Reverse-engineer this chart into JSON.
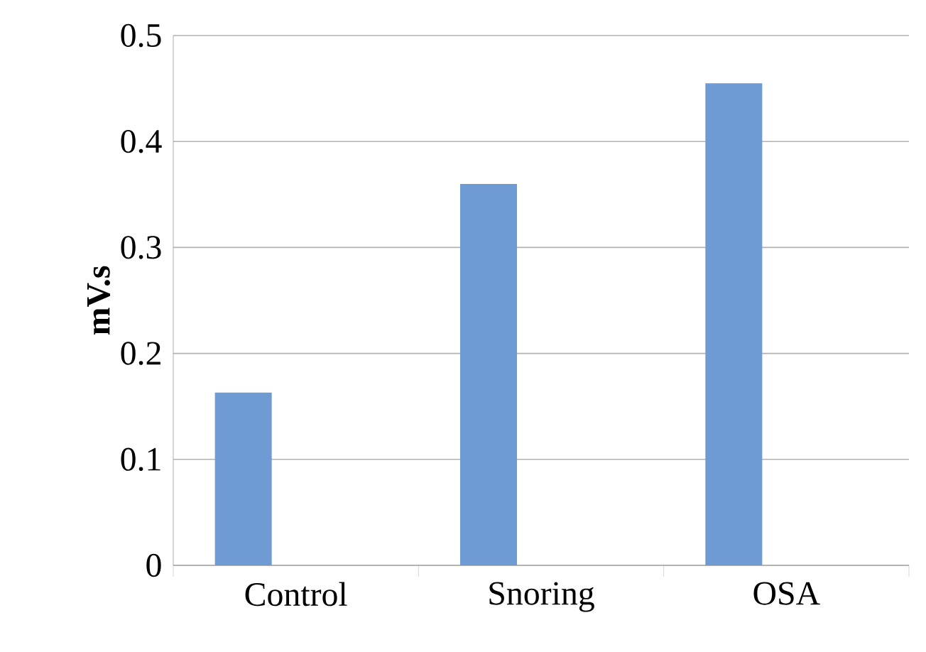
{
  "chart_data": {
    "type": "bar",
    "ylabel": "mV.s",
    "categories": [
      "Control",
      "Snoring",
      "OSA"
    ],
    "values": [
      0.163,
      0.36,
      0.455
    ],
    "color": "#6f9bd4",
    "ylim": [
      0,
      0.5
    ],
    "yticks": [
      0,
      0.1,
      0.2,
      0.3,
      0.4,
      0.5
    ],
    "grid": "y"
  }
}
